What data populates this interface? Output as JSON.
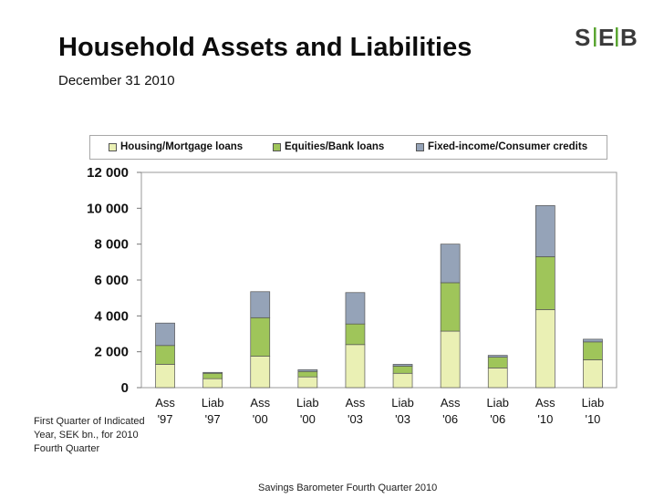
{
  "header": {
    "title": "Household Assets and Liabilities",
    "subtitle": "December 31  2010",
    "logo_text": "SEB"
  },
  "chart_data": {
    "type": "bar",
    "stacked": true,
    "categories": [
      [
        "Ass",
        "'97"
      ],
      [
        "Liab",
        "'97"
      ],
      [
        "Ass",
        "'00"
      ],
      [
        "Liab",
        "'00"
      ],
      [
        "Ass",
        "'03"
      ],
      [
        "Liab",
        "'03"
      ],
      [
        "Ass",
        "'06"
      ],
      [
        "Liab",
        "'06"
      ],
      [
        "Ass",
        "'10"
      ],
      [
        "Liab",
        "'10"
      ]
    ],
    "series": [
      {
        "name": "Housing/Mortgage loans",
        "color": "#eaf0b4",
        "values": [
          1300,
          500,
          1750,
          600,
          2400,
          800,
          3150,
          1100,
          4350,
          1550
        ]
      },
      {
        "name": "Equities/Bank loans",
        "color": "#9fc55a",
        "values": [
          1050,
          300,
          2150,
          300,
          1150,
          400,
          2700,
          600,
          2950,
          1000
        ]
      },
      {
        "name": "Fixed-income/Consumer credits",
        "color": "#95a3b8",
        "values": [
          1250,
          50,
          1450,
          100,
          1750,
          100,
          2150,
          100,
          2850,
          150
        ]
      }
    ],
    "y_ticks": [
      "0",
      "2 000",
      "4 000",
      "6 000",
      "8 000",
      "10 000",
      "12 000"
    ],
    "ylim": [
      0,
      12000
    ],
    "legend_position": "top",
    "grid": false
  },
  "footnote": "First Quarter of Indicated Year, SEK bn., for 2010 Fourth Quarter",
  "footer": "Savings Barometer Fourth Quarter 2010"
}
